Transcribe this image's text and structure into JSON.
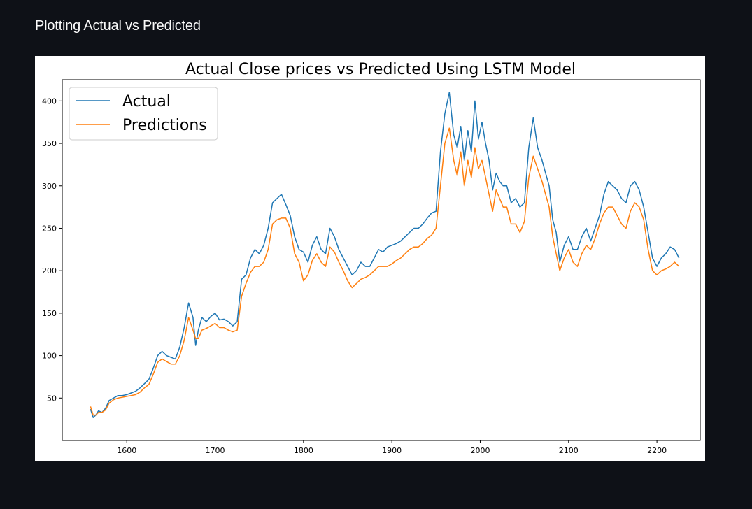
{
  "page": {
    "heading": "Plotting Actual vs Predicted"
  },
  "chart_data": {
    "type": "line",
    "title": "Actual Close prices vs Predicted Using LSTM Model",
    "xlabel": "",
    "ylabel": "",
    "xlim": [
      1527,
      2249
    ],
    "ylim": [
      0,
      425
    ],
    "xticks": [
      1600,
      1700,
      1800,
      1900,
      2000,
      2100,
      2200
    ],
    "yticks": [
      50,
      100,
      150,
      200,
      250,
      300,
      350,
      400
    ],
    "grid": false,
    "legend_position": "top-left",
    "series": [
      {
        "name": "Actual",
        "color": "#1f77b4",
        "x": [
          1559,
          1562,
          1565,
          1568,
          1572,
          1576,
          1580,
          1585,
          1590,
          1595,
          1600,
          1605,
          1610,
          1615,
          1620,
          1625,
          1630,
          1635,
          1640,
          1645,
          1650,
          1655,
          1660,
          1665,
          1670,
          1675,
          1678,
          1681,
          1685,
          1690,
          1695,
          1700,
          1705,
          1710,
          1715,
          1720,
          1725,
          1730,
          1735,
          1740,
          1745,
          1750,
          1755,
          1760,
          1765,
          1770,
          1775,
          1780,
          1785,
          1790,
          1795,
          1800,
          1805,
          1810,
          1815,
          1820,
          1825,
          1830,
          1835,
          1840,
          1845,
          1850,
          1855,
          1860,
          1865,
          1870,
          1875,
          1880,
          1885,
          1890,
          1895,
          1900,
          1905,
          1910,
          1915,
          1920,
          1925,
          1930,
          1935,
          1940,
          1945,
          1950,
          1955,
          1960,
          1965,
          1970,
          1974,
          1978,
          1982,
          1986,
          1990,
          1994,
          1998,
          2002,
          2006,
          2010,
          2014,
          2018,
          2022,
          2026,
          2030,
          2035,
          2040,
          2045,
          2050,
          2055,
          2060,
          2065,
          2070,
          2074,
          2078,
          2082,
          2086,
          2090,
          2095,
          2100,
          2105,
          2110,
          2115,
          2120,
          2125,
          2130,
          2135,
          2140,
          2145,
          2150,
          2155,
          2160,
          2165,
          2170,
          2175,
          2180,
          2185,
          2190,
          2195,
          2200,
          2205,
          2210,
          2215,
          2220,
          2225
        ],
        "values": [
          37,
          27,
          30,
          35,
          33,
          38,
          47,
          50,
          53,
          53,
          54,
          56,
          58,
          62,
          67,
          72,
          85,
          100,
          105,
          100,
          98,
          96,
          110,
          133,
          162,
          145,
          112,
          130,
          145,
          140,
          146,
          150,
          142,
          143,
          140,
          135,
          140,
          190,
          195,
          215,
          225,
          220,
          230,
          250,
          280,
          285,
          290,
          278,
          265,
          240,
          225,
          222,
          210,
          230,
          240,
          225,
          220,
          250,
          240,
          225,
          215,
          205,
          195,
          200,
          210,
          205,
          205,
          215,
          225,
          222,
          228,
          230,
          232,
          235,
          240,
          245,
          250,
          250,
          255,
          262,
          268,
          270,
          340,
          385,
          410,
          360,
          345,
          370,
          330,
          365,
          340,
          400,
          355,
          375,
          350,
          330,
          295,
          315,
          305,
          300,
          300,
          280,
          285,
          275,
          280,
          345,
          380,
          345,
          330,
          315,
          300,
          260,
          245,
          210,
          230,
          240,
          225,
          225,
          240,
          250,
          235,
          250,
          265,
          290,
          305,
          300,
          295,
          285,
          280,
          300,
          305,
          295,
          275,
          245,
          215,
          205,
          215,
          220,
          228,
          225,
          215
        ]
      },
      {
        "name": "Predictions",
        "color": "#ff7f0e",
        "x": [
          1559,
          1562,
          1565,
          1568,
          1572,
          1576,
          1580,
          1585,
          1590,
          1595,
          1600,
          1605,
          1610,
          1615,
          1620,
          1625,
          1630,
          1635,
          1640,
          1645,
          1650,
          1655,
          1660,
          1665,
          1670,
          1675,
          1678,
          1681,
          1685,
          1690,
          1695,
          1700,
          1705,
          1710,
          1715,
          1720,
          1725,
          1730,
          1735,
          1740,
          1745,
          1750,
          1755,
          1760,
          1765,
          1770,
          1775,
          1780,
          1785,
          1790,
          1795,
          1800,
          1805,
          1810,
          1815,
          1820,
          1825,
          1830,
          1835,
          1840,
          1845,
          1850,
          1855,
          1860,
          1865,
          1870,
          1875,
          1880,
          1885,
          1890,
          1895,
          1900,
          1905,
          1910,
          1915,
          1920,
          1925,
          1930,
          1935,
          1940,
          1945,
          1950,
          1955,
          1960,
          1965,
          1970,
          1974,
          1978,
          1982,
          1986,
          1990,
          1994,
          1998,
          2002,
          2006,
          2010,
          2014,
          2018,
          2022,
          2026,
          2030,
          2035,
          2040,
          2045,
          2050,
          2055,
          2060,
          2065,
          2070,
          2074,
          2078,
          2082,
          2086,
          2090,
          2095,
          2100,
          2105,
          2110,
          2115,
          2120,
          2125,
          2130,
          2135,
          2140,
          2145,
          2150,
          2155,
          2160,
          2165,
          2170,
          2175,
          2180,
          2185,
          2190,
          2195,
          2200,
          2205,
          2210,
          2215,
          2220,
          2225
        ],
        "values": [
          40,
          30,
          30,
          33,
          33,
          36,
          44,
          48,
          50,
          51,
          52,
          53,
          54,
          57,
          62,
          66,
          78,
          92,
          96,
          93,
          90,
          90,
          100,
          118,
          145,
          130,
          120,
          120,
          130,
          132,
          135,
          138,
          133,
          133,
          130,
          128,
          130,
          170,
          185,
          198,
          205,
          205,
          210,
          225,
          255,
          260,
          262,
          262,
          250,
          220,
          210,
          188,
          195,
          212,
          220,
          210,
          205,
          228,
          222,
          210,
          200,
          188,
          180,
          185,
          190,
          192,
          195,
          200,
          205,
          205,
          205,
          208,
          212,
          215,
          220,
          225,
          228,
          228,
          232,
          238,
          242,
          250,
          300,
          350,
          368,
          330,
          312,
          340,
          300,
          330,
          310,
          345,
          320,
          330,
          310,
          290,
          270,
          295,
          285,
          275,
          275,
          255,
          255,
          245,
          258,
          310,
          335,
          320,
          305,
          290,
          275,
          240,
          220,
          200,
          215,
          225,
          210,
          205,
          220,
          230,
          225,
          238,
          255,
          268,
          275,
          275,
          265,
          255,
          250,
          270,
          280,
          275,
          260,
          225,
          200,
          195,
          200,
          202,
          205,
          210,
          205
        ]
      }
    ]
  }
}
